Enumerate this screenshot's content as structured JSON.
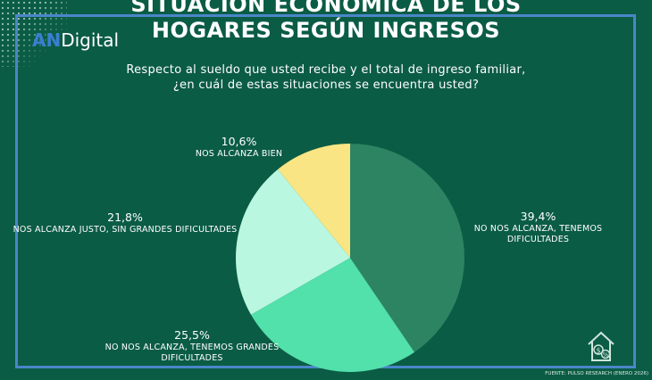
{
  "brand": {
    "logo_part1": "AN",
    "logo_part2": "Digital"
  },
  "header": {
    "title_line1": "SITUACIÓN ECONÓMICA DE LOS",
    "title_line2": "HOGARES SEGÚN INGRESOS",
    "subtitle_line1": "Respecto al sueldo que usted recibe y el total de ingreso familiar,",
    "subtitle_line2": "¿en cuál de estas situaciones se encuentra usted?"
  },
  "footer": {
    "source": "FUENTE: PULSO RESEARCH (ENERO 2026)"
  },
  "colors": {
    "background": "#0b5c45",
    "frame": "#4a86c8"
  },
  "icons": [
    "house-money-icon"
  ],
  "chart_data": {
    "type": "pie",
    "start_angle_deg": 0,
    "direction": "clockwise",
    "slices": [
      {
        "pct_label": "39,4%",
        "label_line1": "NO NOS ALCANZA, TENEMOS",
        "label_line2": "DIFICULTADES",
        "value": 39.4,
        "color": "#2d8462"
      },
      {
        "pct_label": "25,5%",
        "label_line1": "NO NOS ALCANZA, TENEMOS GRANDES",
        "label_line2": "DIFICULTADES",
        "value": 25.5,
        "color": "#52e0ab"
      },
      {
        "pct_label": "21,8%",
        "label_line1": "NOS ALCANZA JUSTO, SIN GRANDES DIFICULTADES",
        "label_line2": "",
        "value": 21.8,
        "color": "#baf7e0"
      },
      {
        "pct_label": "10,6%",
        "label_line1": "NOS ALCANZA BIEN",
        "label_line2": "",
        "value": 10.6,
        "color": "#f9e583"
      }
    ]
  }
}
